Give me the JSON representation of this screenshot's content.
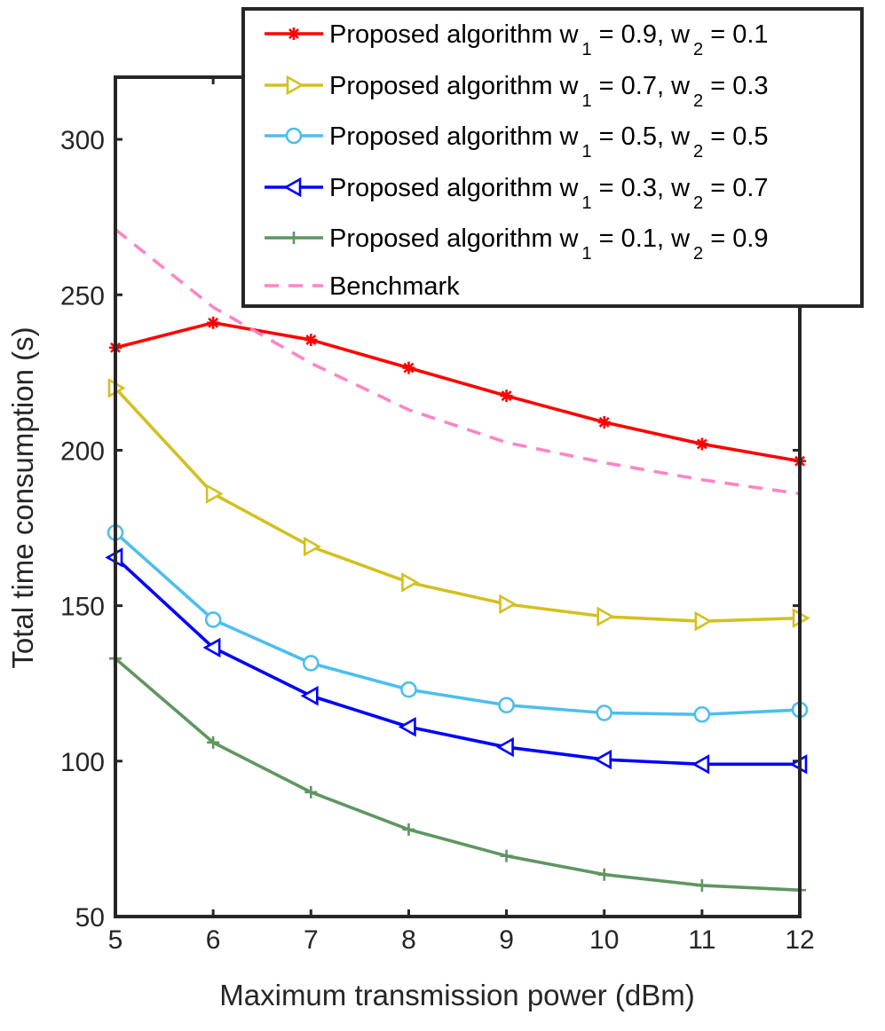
{
  "chart_data": {
    "type": "line",
    "title": "",
    "xlabel": "Maximum transmission power (dBm)",
    "ylabel": "Total time consumption (s)",
    "x": [
      5,
      6,
      7,
      8,
      9,
      10,
      11,
      12
    ],
    "xlim": [
      5,
      12
    ],
    "ylim": [
      50,
      320
    ],
    "xticks": [
      "5",
      "6",
      "7",
      "8",
      "9",
      "10",
      "11",
      "12"
    ],
    "yticks": [
      "50",
      "100",
      "150",
      "200",
      "250",
      "300"
    ],
    "grid": false,
    "legend_position": "top-right",
    "series": [
      {
        "name": "Proposed algorithm w1 = 0.9, w2 = 0.1",
        "legend": {
          "pre": "Proposed algorithm w",
          "sub1": "1",
          "mid": " = 0.9, w",
          "sub2": "2",
          "post": " = 0.1"
        },
        "color": "#ff0000",
        "marker": "asterisk",
        "dash": "solid",
        "values": [
          233,
          241,
          235.5,
          226.5,
          217.5,
          209,
          202,
          196.5
        ]
      },
      {
        "name": "Proposed algorithm w1 = 0.7, w2 = 0.3",
        "legend": {
          "pre": "Proposed algorithm w",
          "sub1": "1",
          "mid": " = 0.7, w",
          "sub2": "2",
          "post": " = 0.3"
        },
        "color": "#d4c021",
        "marker": "triangle-right",
        "dash": "solid",
        "values": [
          220,
          186,
          169,
          157.5,
          150.5,
          146.5,
          145,
          146
        ]
      },
      {
        "name": "Proposed algorithm w1 = 0.5, w2 = 0.5",
        "legend": {
          "pre": "Proposed algorithm w",
          "sub1": "1",
          "mid": " = 0.5, w",
          "sub2": "2",
          "post": " = 0.5"
        },
        "color": "#4dbeee",
        "marker": "circle",
        "dash": "solid",
        "values": [
          173.5,
          145.5,
          131.5,
          123,
          118,
          115.5,
          115,
          116.5
        ]
      },
      {
        "name": "Proposed algorithm w1 = 0.3, w2 = 0.7",
        "legend": {
          "pre": "Proposed algorithm w",
          "sub1": "1",
          "mid": " = 0.3, w",
          "sub2": "2",
          "post": " = 0.7"
        },
        "color": "#0000ff",
        "marker": "triangle-left",
        "dash": "solid",
        "values": [
          165.5,
          136.5,
          121,
          111,
          104.5,
          100.5,
          99,
          99
        ]
      },
      {
        "name": "Proposed algorithm w1 = 0.1, w2 = 0.9",
        "legend": {
          "pre": "Proposed algorithm w",
          "sub1": "1",
          "mid": " = 0.1, w",
          "sub2": "2",
          "post": " = 0.9"
        },
        "color": "#5f9661",
        "marker": "plus",
        "dash": "solid",
        "values": [
          133,
          106,
          90,
          78,
          69.5,
          63.5,
          60,
          58.5
        ]
      },
      {
        "name": "Benchmark",
        "legend": {
          "pre": "Benchmark",
          "sub1": "",
          "mid": "",
          "sub2": "",
          "post": ""
        },
        "color": "#ff84c4",
        "marker": "none",
        "dash": "dashed",
        "values": [
          271,
          246,
          228,
          213,
          202.5,
          196,
          190.5,
          186
        ]
      }
    ]
  }
}
